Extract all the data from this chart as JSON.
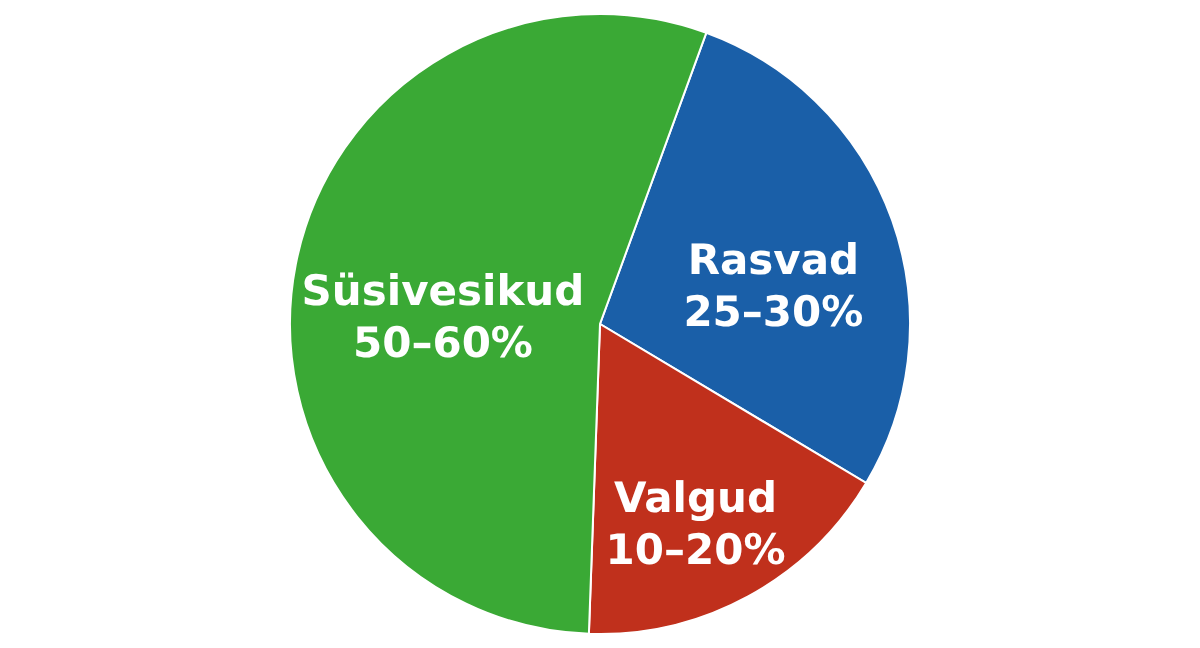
{
  "chart_data": {
    "type": "pie",
    "categories": [
      "Rasvad",
      "Valgud",
      "Süsivesikud"
    ],
    "values": [
      28,
      17,
      55
    ],
    "annotations": [
      "25–30%",
      "10–20%",
      "50–60%"
    ],
    "colors": [
      "#1a5fa8",
      "#c0301c",
      "#3aa935"
    ],
    "legend": false
  }
}
